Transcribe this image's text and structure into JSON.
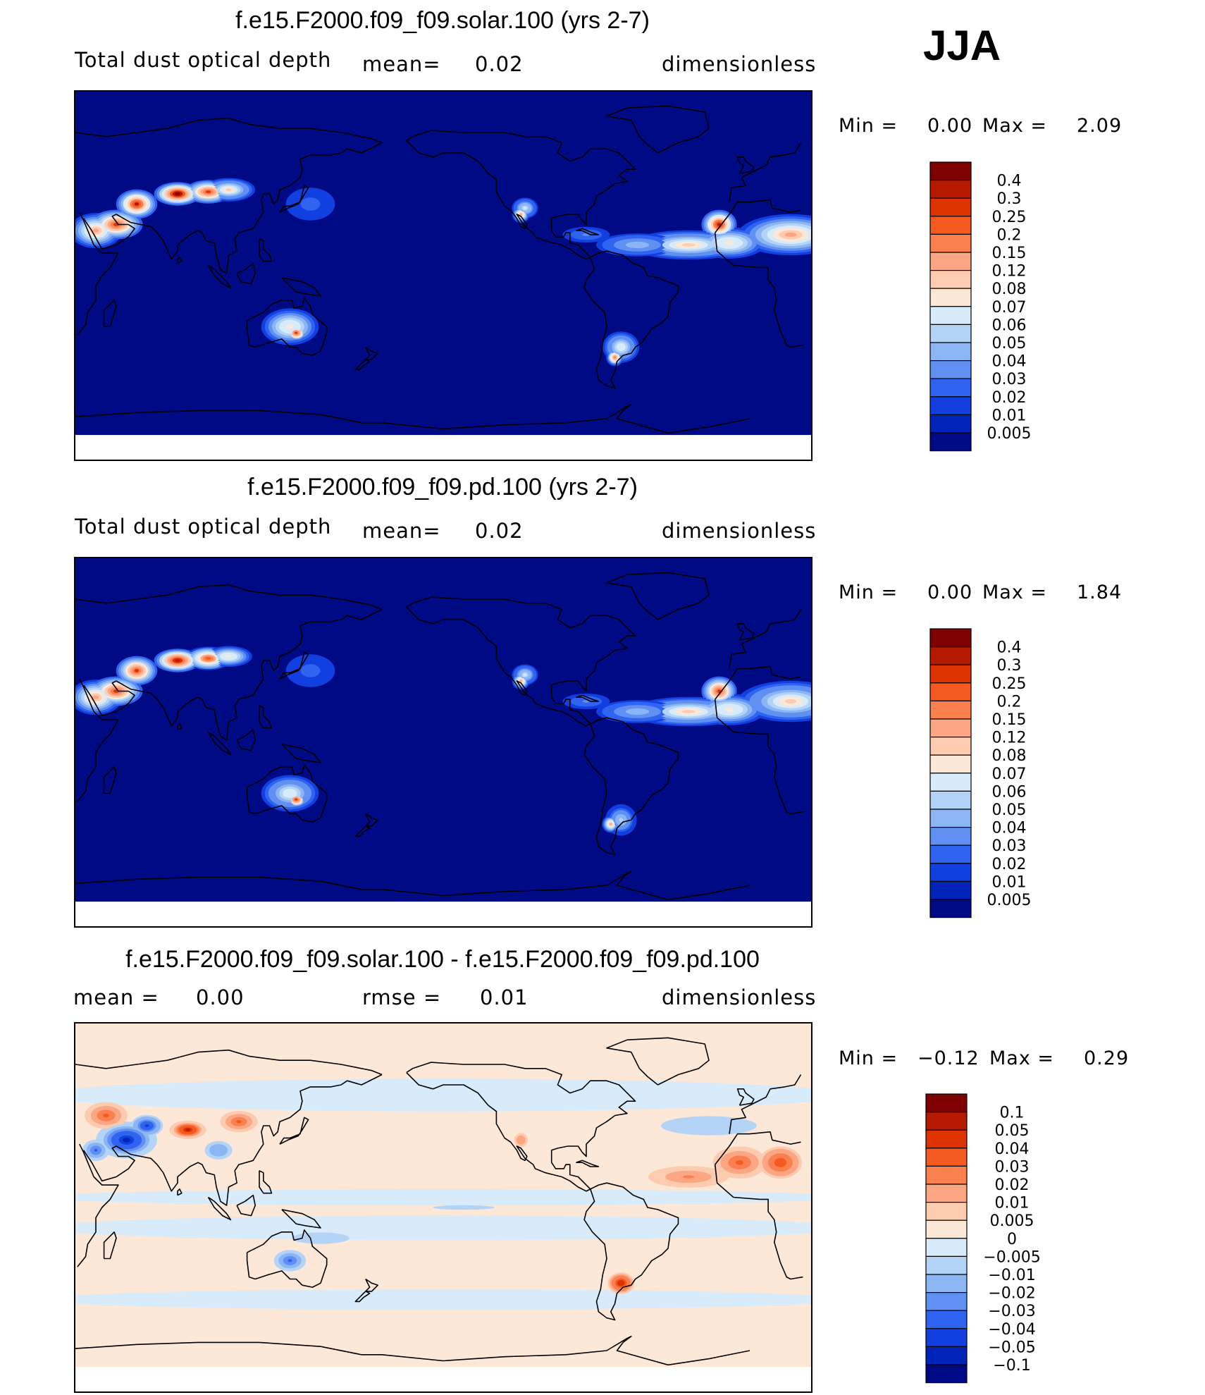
{
  "season": "JJA",
  "panels": [
    {
      "title": "f.e15.F2000.f09_f09.solar.100 (yrs 2-7)",
      "left_label": "Total dust optical depth",
      "center_label": "mean=",
      "center_value": "0.02",
      "units": "dimensionless",
      "min_label": "Min =",
      "min_value": "0.00",
      "max_label": "Max =",
      "max_value": "2.09"
    },
    {
      "title": "f.e15.F2000.f09_f09.pd.100 (yrs 2-7)",
      "left_label": "Total dust optical depth",
      "center_label": "mean=",
      "center_value": "0.02",
      "units": "dimensionless",
      "min_label": "Min =",
      "min_value": "0.00",
      "max_label": "Max =",
      "max_value": "1.84"
    },
    {
      "title": "f.e15.F2000.f09_f09.solar.100 - f.e15.F2000.f09_f09.pd.100",
      "left_label": "mean =",
      "left_value": "0.00",
      "center_label": "rmse =",
      "center_value": "0.01",
      "units": "dimensionless",
      "min_label": "Min =",
      "min_value": "−0.12",
      "max_label": "Max =",
      "max_value": "0.29"
    }
  ],
  "chart_data": [
    {
      "type": "heatmap",
      "title": "f.e15.F2000.f09_f09.solar.100 (yrs 2-7)",
      "variable": "Total dust optical depth",
      "units": "dimensionless",
      "mean": 0.02,
      "min": 0.0,
      "max": 2.09,
      "colorbar": {
        "labels": [
          "0.4",
          "0.3",
          "0.25",
          "0.2",
          "0.15",
          "0.12",
          "0.08",
          "0.07",
          "0.06",
          "0.05",
          "0.04",
          "0.03",
          "0.02",
          "0.01",
          "0.005"
        ],
        "colors": [
          "#7f0000",
          "#b51a00",
          "#dd3300",
          "#f55a20",
          "#fa8050",
          "#fca684",
          "#fccbb0",
          "#fde8d8",
          "#d8ebfa",
          "#b4d4f7",
          "#8cb5f4",
          "#5f90f2",
          "#3064f0",
          "#123fe0",
          "#0024b8",
          "#000a84"
        ]
      },
      "hotspots": [
        {
          "region": "Sahara / North Africa",
          "approx_value": 0.4
        },
        {
          "region": "Arabian Peninsula",
          "approx_value": 0.4
        },
        {
          "region": "Taklimakan / Gobi",
          "approx_value": 0.4
        },
        {
          "region": "Tropical Atlantic dust plume",
          "approx_value": 0.2
        },
        {
          "region": "Central Australia",
          "approx_value": 0.25
        },
        {
          "region": "Patagonia",
          "approx_value": 0.1
        },
        {
          "region": "SW North America",
          "approx_value": 0.07
        }
      ]
    },
    {
      "type": "heatmap",
      "title": "f.e15.F2000.f09_f09.pd.100 (yrs 2-7)",
      "variable": "Total dust optical depth",
      "units": "dimensionless",
      "mean": 0.02,
      "min": 0.0,
      "max": 1.84,
      "colorbar": {
        "labels": [
          "0.4",
          "0.3",
          "0.25",
          "0.2",
          "0.15",
          "0.12",
          "0.08",
          "0.07",
          "0.06",
          "0.05",
          "0.04",
          "0.03",
          "0.02",
          "0.01",
          "0.005"
        ],
        "colors": [
          "#7f0000",
          "#b51a00",
          "#dd3300",
          "#f55a20",
          "#fa8050",
          "#fca684",
          "#fccbb0",
          "#fde8d8",
          "#d8ebfa",
          "#b4d4f7",
          "#8cb5f4",
          "#5f90f2",
          "#3064f0",
          "#123fe0",
          "#0024b8",
          "#000a84"
        ]
      },
      "hotspots": [
        {
          "region": "Sahara / North Africa",
          "approx_value": 0.4
        },
        {
          "region": "Arabian Peninsula",
          "approx_value": 0.4
        },
        {
          "region": "Taklimakan / Gobi",
          "approx_value": 0.4
        },
        {
          "region": "Tropical Atlantic dust plume",
          "approx_value": 0.2
        },
        {
          "region": "Central Australia",
          "approx_value": 0.25
        },
        {
          "region": "Patagonia",
          "approx_value": 0.07
        },
        {
          "region": "SW North America",
          "approx_value": 0.07
        }
      ]
    },
    {
      "type": "heatmap",
      "title": "f.e15.F2000.f09_f09.solar.100 - f.e15.F2000.f09_f09.pd.100",
      "variable": "Total dust optical depth difference",
      "units": "dimensionless",
      "mean": 0.0,
      "rmse": 0.01,
      "min": -0.12,
      "max": 0.29,
      "colorbar": {
        "labels": [
          "0.1",
          "0.05",
          "0.04",
          "0.03",
          "0.02",
          "0.01",
          "0.005",
          "0",
          "−0.005",
          "−0.01",
          "−0.02",
          "−0.03",
          "−0.04",
          "−0.05",
          "−0.1"
        ],
        "colors": [
          "#7f0000",
          "#b51a00",
          "#dd3300",
          "#f55a20",
          "#fa8050",
          "#fca684",
          "#fccbb0",
          "#fde8d8",
          "#d8ebfa",
          "#b4d4f7",
          "#8cb5f4",
          "#5f90f2",
          "#3064f0",
          "#123fe0",
          "#0024b8",
          "#000a84"
        ]
      },
      "hotspots": [
        {
          "region": "Sahara / North Africa",
          "approx_value": 0.05
        },
        {
          "region": "Central Asia (Taklimakan)",
          "approx_value": 0.1
        },
        {
          "region": "Middle East / Iran",
          "approx_value": -0.05
        },
        {
          "region": "Tropical Atlantic plume",
          "approx_value": 0.02
        },
        {
          "region": "Patagonia",
          "approx_value": 0.05
        },
        {
          "region": "Central Australia",
          "approx_value": -0.03
        }
      ]
    }
  ]
}
